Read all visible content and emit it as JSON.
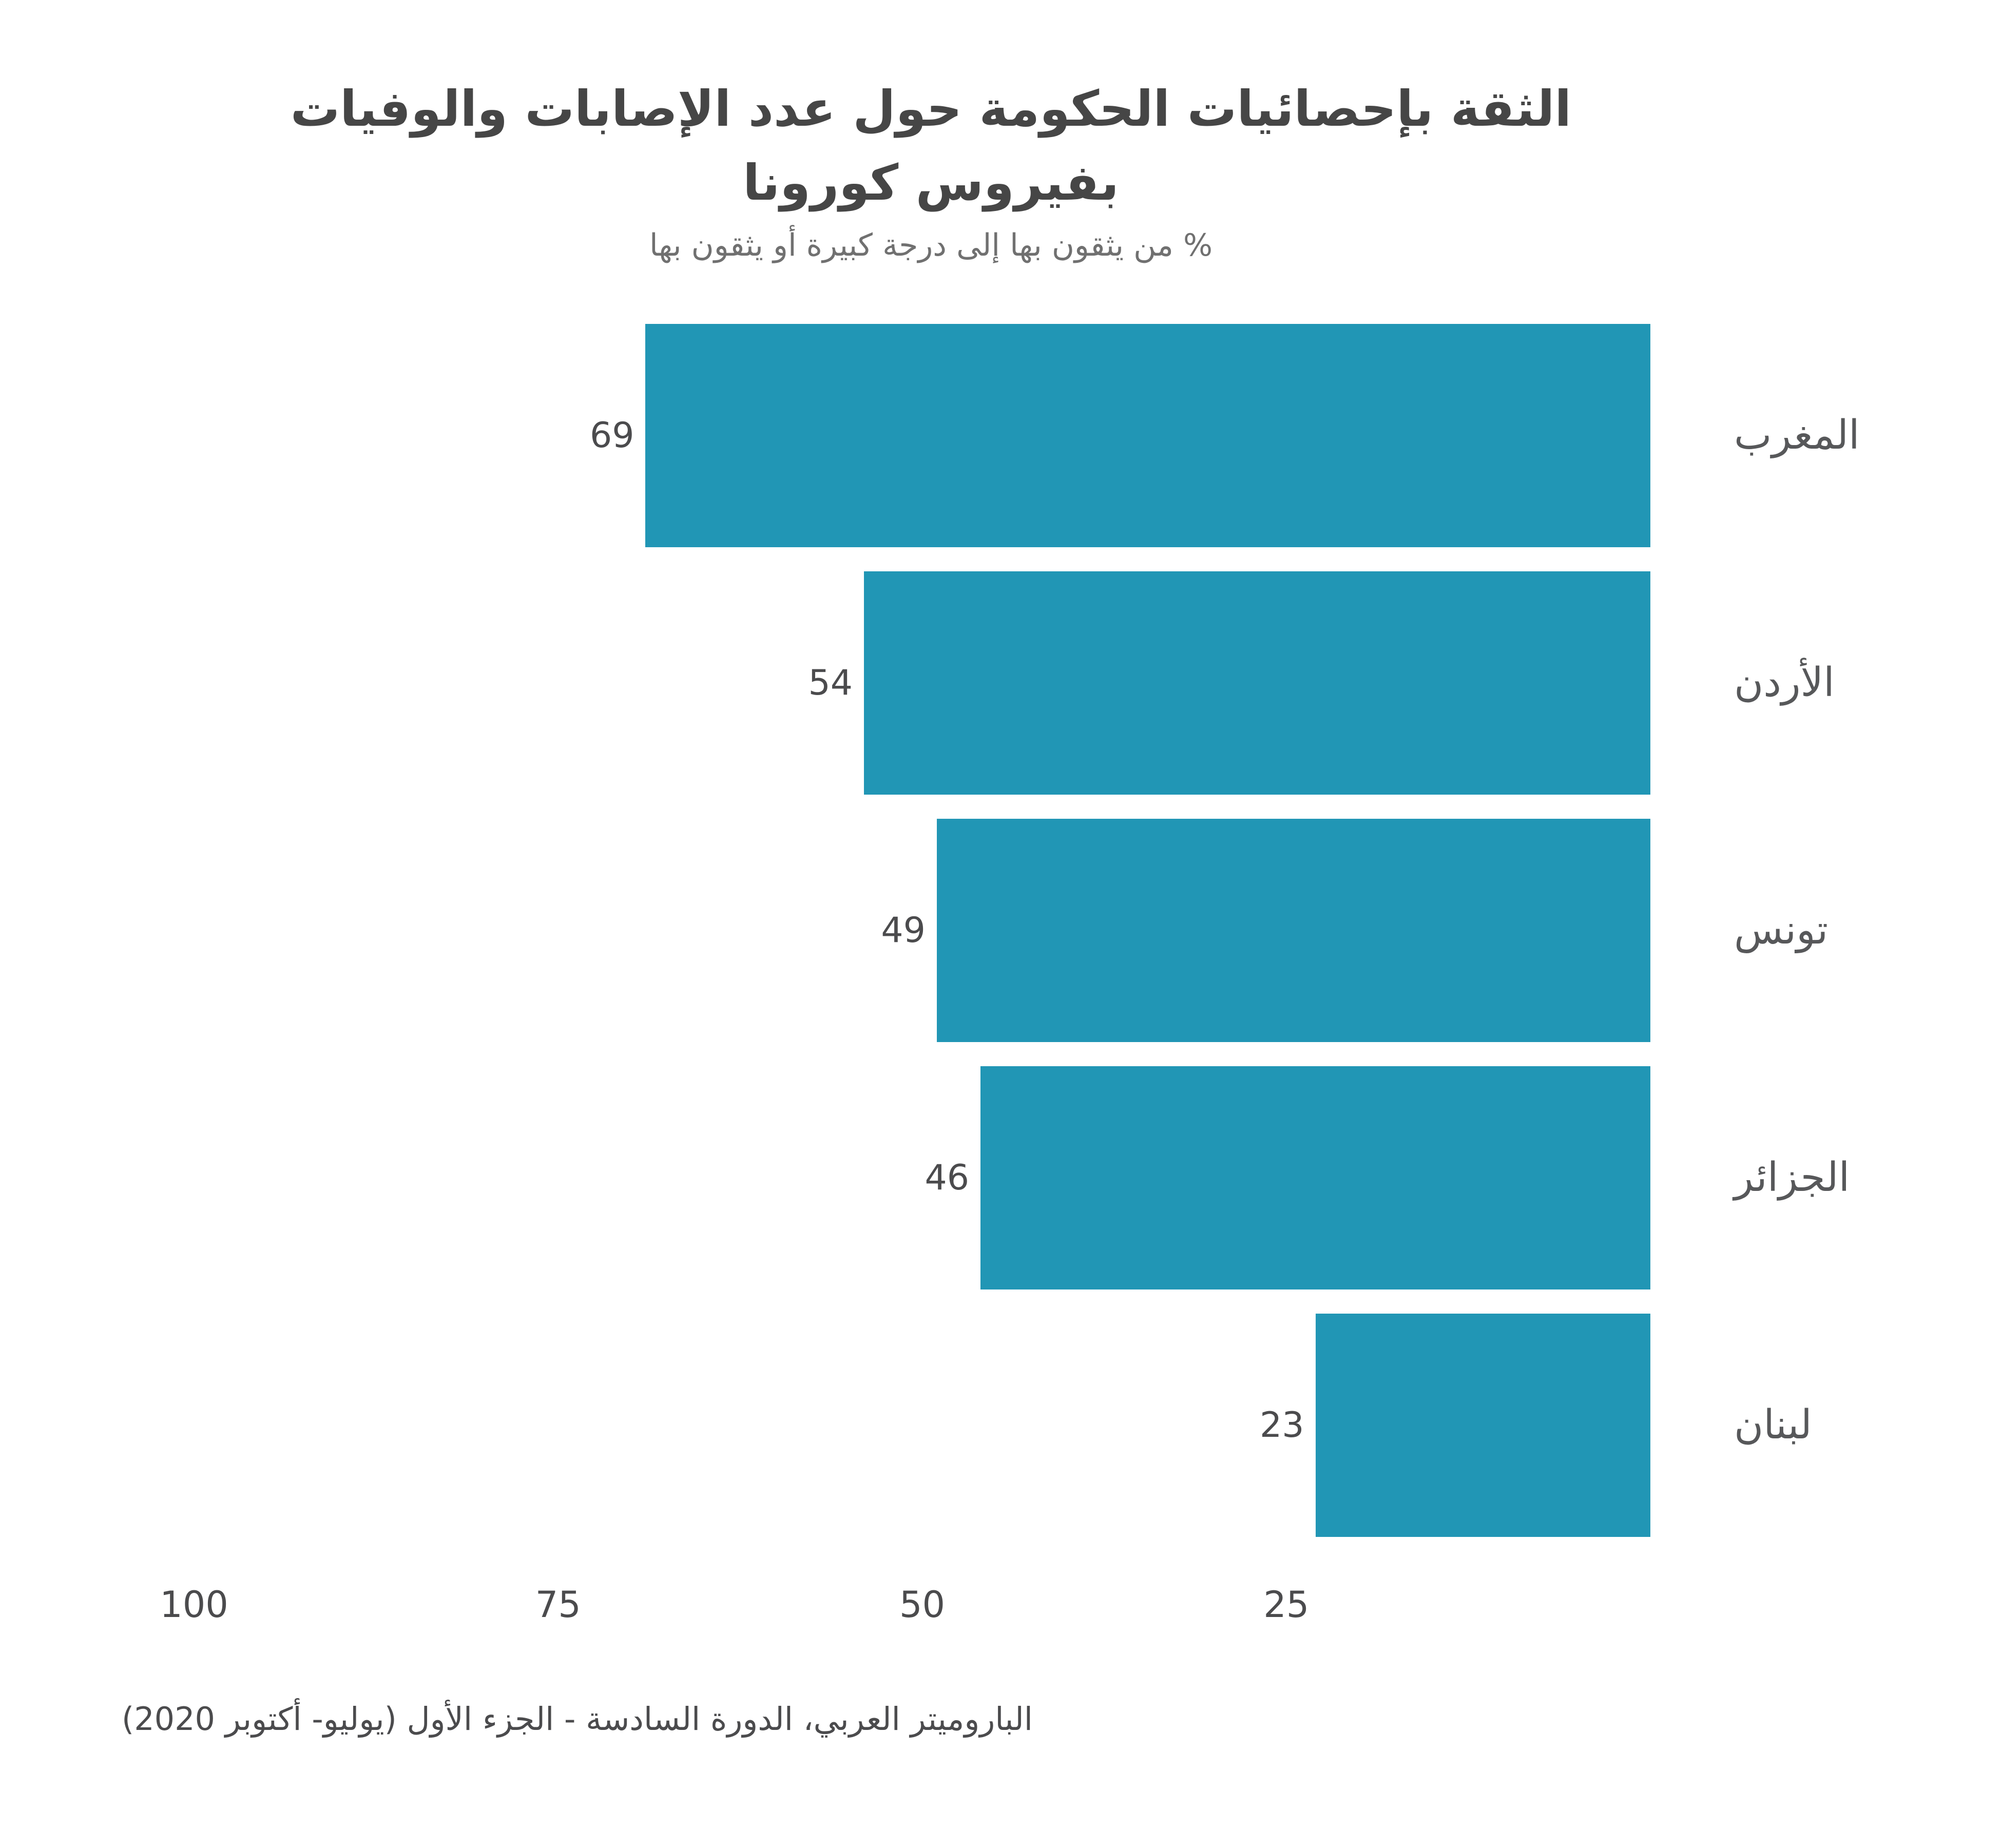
{
  "chart_data": {
    "type": "bar",
    "orientation": "horizontal-rtl",
    "title": "الثقة بإحصائيات الحكومة حول عدد الإصابات والوفيات بفيروس كورونا",
    "title_lines": [
      "الثقة بإحصائيات الحكومة حول عدد الإصابات والوفيات",
      "بفيروس كورونا"
    ],
    "subtitle": "% من يثقون بها إلى درجة كبيرة أو يثقون بها",
    "categories": [
      "المغرب",
      "الأردن",
      "تونس",
      "الجزائر",
      "لبنان"
    ],
    "values": [
      69,
      54,
      49,
      46,
      23
    ],
    "x_ticks": [
      100,
      75,
      50,
      25
    ],
    "xlim": [
      0,
      100
    ],
    "grid": "off",
    "legend": "none",
    "bar_color": "#2196b5",
    "source": "الباروميتر العربي، الدورة السادسة - الجزء الأول (يوليو- أكتوبر 2020)"
  },
  "colors": {
    "background": "#ffffff",
    "title_text": "#464646",
    "subtitle_text": "#707070",
    "category_text": "#57585a",
    "value_text": "#4b4b4d",
    "tick_text": "#4b4b4d",
    "source_text": "#4b4b4d"
  }
}
